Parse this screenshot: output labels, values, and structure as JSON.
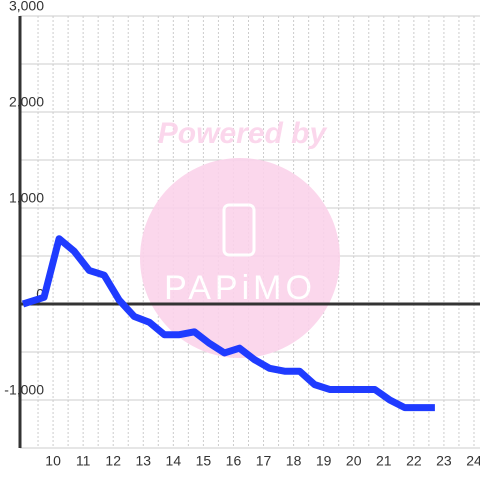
{
  "chart_data": {
    "type": "line",
    "x": [
      9.0,
      9.7,
      10.2,
      10.7,
      11.2,
      11.7,
      12.2,
      12.7,
      13.2,
      13.7,
      14.2,
      14.7,
      15.2,
      15.7,
      16.2,
      16.7,
      17.2,
      17.7,
      18.2,
      18.7,
      19.2,
      19.7,
      20.2,
      20.7,
      21.2,
      21.7,
      22.2,
      22.7
    ],
    "series": [
      {
        "color": "#1f3bff",
        "values": [
          0,
          70,
          680,
          550,
          350,
          300,
          40,
          -130,
          -190,
          -320,
          -320,
          -290,
          -410,
          -510,
          -460,
          -580,
          -670,
          -700,
          -700,
          -840,
          -890,
          -890,
          -890,
          -890,
          -1000,
          -1080,
          -1080,
          -1080
        ]
      }
    ],
    "xlim": [
      8.9,
      24.2
    ],
    "ylim": [
      -1500,
      3000
    ],
    "xticks": [
      10,
      11,
      12,
      13,
      14,
      15,
      16,
      17,
      18,
      19,
      20,
      21,
      22,
      23,
      24
    ],
    "xminorticks": [
      9.5,
      10.5,
      11.5,
      12.5,
      13.5,
      14.5,
      15.5,
      16.5,
      17.5,
      18.5,
      19.5,
      20.5,
      21.5,
      22.5,
      23.5
    ],
    "yticks": [
      {
        "value": -1000,
        "label": "-1,000"
      },
      0,
      {
        "value": 1000,
        "label": "1,000"
      },
      {
        "value": 2000,
        "label": "2,000"
      },
      {
        "value": 3000,
        "label": "3,000"
      }
    ],
    "yminorticks": [
      -1500,
      -500,
      500,
      1500,
      2500
    ],
    "grid": true,
    "watermark": {
      "caption": "Powered by",
      "logo": "PAPiMO"
    }
  }
}
